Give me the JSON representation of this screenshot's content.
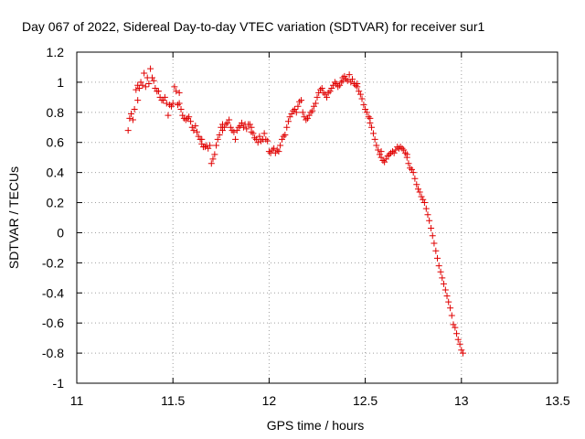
{
  "chart_data": {
    "type": "scatter",
    "title": "Day 067 of 2022, Sidereal Day-to-day VTEC variation (SDTVAR) for receiver sur1",
    "xlabel": "GPS time / hours",
    "ylabel": "SDTVAR / TECUs",
    "xlim": [
      11,
      13.5
    ],
    "ylim": [
      -1,
      1.2
    ],
    "grid": true,
    "marker": "+",
    "color": "#e00000",
    "xticks": [
      {
        "value": 11,
        "label": "11"
      },
      {
        "value": 11.5,
        "label": "11.5"
      },
      {
        "value": 12,
        "label": "12"
      },
      {
        "value": 12.5,
        "label": "12.5"
      },
      {
        "value": 13,
        "label": "13"
      },
      {
        "value": 13.5,
        "label": "13.5"
      }
    ],
    "yticks": [
      {
        "value": 1.2,
        "label": "1.2"
      },
      {
        "value": 1.0,
        "label": "1"
      },
      {
        "value": 0.8,
        "label": "0.8"
      },
      {
        "value": 0.6,
        "label": "0.6"
      },
      {
        "value": 0.4,
        "label": "0.4"
      },
      {
        "value": 0.2,
        "label": "0.2"
      },
      {
        "value": 0.0,
        "label": "0"
      },
      {
        "value": -0.2,
        "label": "-0.2"
      },
      {
        "value": -0.4,
        "label": "-0.4"
      },
      {
        "value": -0.6,
        "label": "-0.6"
      },
      {
        "value": -0.8,
        "label": "-0.8"
      },
      {
        "value": -1.0,
        "label": "-1"
      }
    ],
    "points": [
      [
        11.267,
        0.68
      ],
      [
        11.275,
        0.76
      ],
      [
        11.283,
        0.79
      ],
      [
        11.292,
        0.75
      ],
      [
        11.3,
        0.82
      ],
      [
        11.308,
        0.95
      ],
      [
        11.317,
        0.88
      ],
      [
        11.325,
        0.96
      ],
      [
        11.333,
        1.0
      ],
      [
        11.342,
        0.98
      ],
      [
        11.35,
        1.06
      ],
      [
        11.358,
        0.97
      ],
      [
        11.367,
        1.03
      ],
      [
        11.375,
        0.99
      ],
      [
        11.383,
        1.09
      ],
      [
        11.392,
        1.03
      ],
      [
        11.4,
        1.01
      ],
      [
        11.408,
        0.96
      ],
      [
        11.417,
        0.94
      ],
      [
        11.425,
        0.94
      ],
      [
        11.433,
        0.9
      ],
      [
        11.442,
        0.88
      ],
      [
        11.45,
        0.88
      ],
      [
        11.458,
        0.9
      ],
      [
        11.467,
        0.86
      ],
      [
        11.475,
        0.78
      ],
      [
        11.483,
        0.85
      ],
      [
        11.492,
        0.84
      ],
      [
        11.5,
        0.86
      ],
      [
        11.508,
        0.97
      ],
      [
        11.517,
        0.94
      ],
      [
        11.525,
        0.85
      ],
      [
        11.533,
        0.86
      ],
      [
        11.542,
        0.82
      ],
      [
        11.55,
        0.78
      ],
      [
        11.558,
        0.76
      ],
      [
        11.567,
        0.75
      ],
      [
        11.575,
        0.76
      ],
      [
        11.583,
        0.77
      ],
      [
        11.592,
        0.74
      ],
      [
        11.6,
        0.7
      ],
      [
        11.608,
        0.68
      ],
      [
        11.617,
        0.71
      ],
      [
        11.625,
        0.67
      ],
      [
        11.633,
        0.64
      ],
      [
        11.642,
        0.62
      ],
      [
        11.65,
        0.59
      ],
      [
        11.658,
        0.57
      ],
      [
        11.667,
        0.57
      ],
      [
        11.675,
        0.58
      ],
      [
        11.683,
        0.56
      ],
      [
        11.692,
        0.58
      ],
      [
        11.7,
        0.46
      ],
      [
        11.708,
        0.49
      ],
      [
        11.717,
        0.52
      ],
      [
        11.725,
        0.58
      ],
      [
        11.733,
        0.62
      ],
      [
        11.742,
        0.65
      ],
      [
        11.75,
        0.7
      ],
      [
        11.758,
        0.68
      ],
      [
        11.767,
        0.7
      ],
      [
        11.775,
        0.72
      ],
      [
        11.783,
        0.73
      ],
      [
        11.792,
        0.75
      ],
      [
        11.8,
        0.7
      ],
      [
        11.808,
        0.68
      ],
      [
        11.817,
        0.67
      ],
      [
        11.825,
        0.62
      ],
      [
        11.833,
        0.68
      ],
      [
        11.842,
        0.7
      ],
      [
        11.85,
        0.71
      ],
      [
        11.858,
        0.73
      ],
      [
        11.867,
        0.7
      ],
      [
        11.875,
        0.72
      ],
      [
        11.883,
        0.69
      ],
      [
        11.892,
        0.72
      ],
      [
        11.9,
        0.72
      ],
      [
        11.908,
        0.67
      ],
      [
        11.917,
        0.66
      ],
      [
        11.925,
        0.63
      ],
      [
        11.933,
        0.62
      ],
      [
        11.942,
        0.6
      ],
      [
        11.95,
        0.64
      ],
      [
        11.958,
        0.61
      ],
      [
        11.967,
        0.62
      ],
      [
        11.975,
        0.66
      ],
      [
        11.983,
        0.62
      ],
      [
        11.992,
        0.61
      ],
      [
        12.0,
        0.54
      ],
      [
        12.008,
        0.53
      ],
      [
        12.017,
        0.55
      ],
      [
        12.025,
        0.56
      ],
      [
        12.033,
        0.53
      ],
      [
        12.042,
        0.55
      ],
      [
        12.05,
        0.54
      ],
      [
        12.058,
        0.58
      ],
      [
        12.067,
        0.62
      ],
      [
        12.075,
        0.64
      ],
      [
        12.083,
        0.65
      ],
      [
        12.092,
        0.7
      ],
      [
        12.1,
        0.74
      ],
      [
        12.108,
        0.77
      ],
      [
        12.117,
        0.79
      ],
      [
        12.125,
        0.81
      ],
      [
        12.133,
        0.82
      ],
      [
        12.142,
        0.8
      ],
      [
        12.15,
        0.84
      ],
      [
        12.158,
        0.87
      ],
      [
        12.167,
        0.88
      ],
      [
        12.175,
        0.8
      ],
      [
        12.183,
        0.77
      ],
      [
        12.192,
        0.75
      ],
      [
        12.2,
        0.76
      ],
      [
        12.208,
        0.78
      ],
      [
        12.217,
        0.8
      ],
      [
        12.225,
        0.81
      ],
      [
        12.233,
        0.84
      ],
      [
        12.242,
        0.86
      ],
      [
        12.25,
        0.9
      ],
      [
        12.258,
        0.93
      ],
      [
        12.267,
        0.95
      ],
      [
        12.275,
        0.96
      ],
      [
        12.283,
        0.93
      ],
      [
        12.292,
        0.92
      ],
      [
        12.3,
        0.9
      ],
      [
        12.308,
        0.93
      ],
      [
        12.317,
        0.94
      ],
      [
        12.325,
        0.96
      ],
      [
        12.333,
        0.98
      ],
      [
        12.342,
        1.0
      ],
      [
        12.35,
        0.99
      ],
      [
        12.358,
        0.97
      ],
      [
        12.367,
        0.98
      ],
      [
        12.375,
        1.0
      ],
      [
        12.383,
        1.03
      ],
      [
        12.392,
        1.04
      ],
      [
        12.4,
        1.02
      ],
      [
        12.408,
        1.01
      ],
      [
        12.417,
        1.05
      ],
      [
        12.425,
        1.0
      ],
      [
        12.433,
        1.02
      ],
      [
        12.442,
        0.99
      ],
      [
        12.45,
        0.98
      ],
      [
        12.458,
        0.97
      ],
      [
        12.467,
        0.94
      ],
      [
        12.475,
        0.92
      ],
      [
        12.483,
        0.89
      ],
      [
        12.492,
        0.85
      ],
      [
        12.5,
        0.82
      ],
      [
        12.508,
        0.8
      ],
      [
        12.517,
        0.77
      ],
      [
        12.525,
        0.73
      ],
      [
        12.533,
        0.7
      ],
      [
        12.542,
        0.66
      ],
      [
        12.55,
        0.62
      ],
      [
        12.558,
        0.58
      ],
      [
        12.567,
        0.55
      ],
      [
        12.575,
        0.52
      ],
      [
        12.583,
        0.5
      ],
      [
        12.592,
        0.48
      ],
      [
        12.6,
        0.47
      ],
      [
        12.608,
        0.49
      ],
      [
        12.617,
        0.51
      ],
      [
        12.625,
        0.52
      ],
      [
        12.633,
        0.53
      ],
      [
        12.642,
        0.54
      ],
      [
        12.65,
        0.53
      ],
      [
        12.658,
        0.55
      ],
      [
        12.667,
        0.57
      ],
      [
        12.675,
        0.56
      ],
      [
        12.683,
        0.57
      ],
      [
        12.692,
        0.56
      ],
      [
        12.7,
        0.55
      ],
      [
        12.708,
        0.53
      ],
      [
        12.717,
        0.5
      ],
      [
        12.725,
        0.46
      ],
      [
        12.733,
        0.43
      ],
      [
        12.742,
        0.42
      ],
      [
        12.75,
        0.4
      ],
      [
        12.758,
        0.36
      ],
      [
        12.767,
        0.32
      ],
      [
        12.775,
        0.29
      ],
      [
        12.783,
        0.27
      ],
      [
        12.792,
        0.24
      ],
      [
        12.8,
        0.22
      ],
      [
        12.808,
        0.2
      ],
      [
        12.817,
        0.16
      ],
      [
        12.825,
        0.12
      ],
      [
        12.833,
        0.08
      ],
      [
        12.842,
        0.03
      ],
      [
        12.85,
        -0.02
      ],
      [
        12.858,
        -0.07
      ],
      [
        12.867,
        -0.12
      ],
      [
        12.875,
        -0.17
      ],
      [
        12.883,
        -0.22
      ],
      [
        12.892,
        -0.26
      ],
      [
        12.9,
        -0.3
      ],
      [
        12.908,
        -0.34
      ],
      [
        12.917,
        -0.38
      ],
      [
        12.925,
        -0.42
      ],
      [
        12.933,
        -0.46
      ],
      [
        12.942,
        -0.5
      ],
      [
        12.95,
        -0.55
      ],
      [
        12.958,
        -0.61
      ],
      [
        12.967,
        -0.63
      ],
      [
        12.975,
        -0.67
      ],
      [
        12.983,
        -0.71
      ],
      [
        12.992,
        -0.74
      ],
      [
        13.0,
        -0.78
      ],
      [
        13.008,
        -0.8
      ],
      [
        11.908,
        0.7
      ],
      [
        11.65,
        0.62
      ],
      [
        12.717,
        0.52
      ],
      [
        12.583,
        0.54
      ],
      [
        12.525,
        0.76
      ],
      [
        12.383,
        1.01
      ],
      [
        12.458,
        0.99
      ],
      [
        11.758,
        0.72
      ],
      [
        11.533,
        0.93
      ],
      [
        11.317,
        0.98
      ]
    ]
  }
}
